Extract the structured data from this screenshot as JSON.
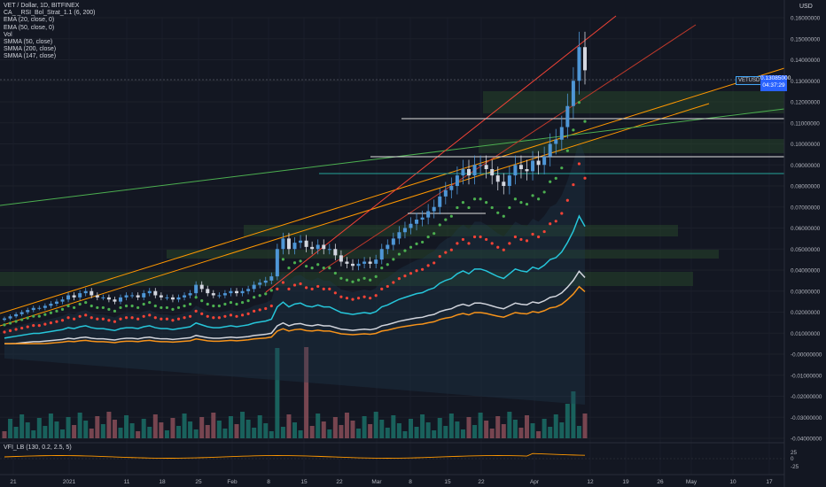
{
  "legend": {
    "title": "VET / Dollar, 1D, BITFINEX",
    "studies": [
      "CA_ _RSI_Bol_Strat_1.1 (6, 200)",
      "EMA (20, close, 0)",
      "EMA (50, close, 0)",
      "Vol",
      "SMMA (50, close)",
      "SMMA (200, close)",
      "SMMA (147, close)"
    ]
  },
  "currency": "USD",
  "price_tag": {
    "symbol": "VETUSD",
    "price": "0.13085000",
    "countdown": "04:37:29",
    "color": "#2962ff"
  },
  "vfi_label": "VFI_LB (130, 0.2, 2.5, 5)",
  "colors": {
    "background": "#131722",
    "up": "#4e96d6",
    "down": "#d3d6df",
    "ema20": "#4caf50",
    "ema50": "#f44336",
    "smma50": "#26c6da",
    "smma200": "#f7931a",
    "smma147": "#d1d4dc",
    "vol_up": "#1b6f66",
    "vol_down": "#8a4e58",
    "trend_orange": "#ff9800",
    "trend_red": "#f44336",
    "trend_green": "#4caf50",
    "zone": "#2a4d2c"
  },
  "chart_data": {
    "type": "candlestick",
    "title": "VET / Dollar, 1D, BITFINEX",
    "y_axis_labels": [
      "0.16000000",
      "0.15000000",
      "0.14000000",
      "0.13000000",
      "0.12000000",
      "0.11000000",
      "0.10000000",
      "0.09000000",
      "0.08000000",
      "0.07000000",
      "0.06000000",
      "0.05000000",
      "0.04000000",
      "0.03000000",
      "0.02000000",
      "0.01000000",
      "-0.00000000",
      "-0.01000000",
      "-0.02000000",
      "-0.03000000",
      "-0.04000000"
    ],
    "x_axis_labels": [
      "21",
      "2021",
      "11",
      "18",
      "25",
      "Feb",
      "8",
      "15",
      "22",
      "Mar",
      "8",
      "15",
      "22",
      "Apr",
      "12",
      "19",
      "26",
      "May",
      "10",
      "17"
    ],
    "vfi_axis_labels": [
      "25",
      "0",
      "-25"
    ],
    "ylim": [
      -0.04,
      0.16
    ],
    "close_approx": [
      0.017,
      0.018,
      0.019,
      0.02,
      0.021,
      0.022,
      0.022,
      0.023,
      0.024,
      0.025,
      0.026,
      0.028,
      0.027,
      0.029,
      0.03,
      0.028,
      0.027,
      0.027,
      0.026,
      0.025,
      0.027,
      0.028,
      0.028,
      0.027,
      0.029,
      0.03,
      0.028,
      0.027,
      0.027,
      0.026,
      0.027,
      0.028,
      0.029,
      0.033,
      0.031,
      0.029,
      0.028,
      0.028,
      0.029,
      0.03,
      0.029,
      0.03,
      0.031,
      0.033,
      0.034,
      0.035,
      0.037,
      0.05,
      0.055,
      0.05,
      0.053,
      0.054,
      0.051,
      0.05,
      0.052,
      0.05,
      0.05,
      0.047,
      0.044,
      0.043,
      0.042,
      0.043,
      0.044,
      0.043,
      0.045,
      0.05,
      0.052,
      0.055,
      0.058,
      0.06,
      0.062,
      0.064,
      0.065,
      0.068,
      0.07,
      0.075,
      0.078,
      0.08,
      0.085,
      0.088,
      0.085,
      0.09,
      0.09,
      0.088,
      0.085,
      0.082,
      0.08,
      0.085,
      0.09,
      0.088,
      0.087,
      0.092,
      0.09,
      0.094,
      0.1,
      0.102,
      0.108,
      0.118,
      0.13,
      0.146,
      0.135
    ]
  }
}
